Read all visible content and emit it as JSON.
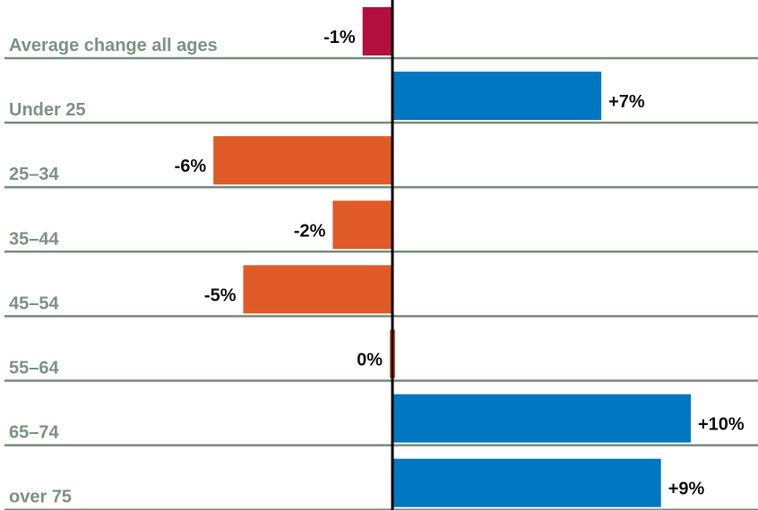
{
  "chart_data": {
    "type": "bar",
    "orientation": "horizontal",
    "categories": [
      "Average change all ages",
      "Under 25",
      "25–34",
      "35–44",
      "45–54",
      "55–64",
      "65–74",
      "over 75"
    ],
    "values": [
      -1,
      7,
      -6,
      -2,
      -5,
      0,
      10,
      9
    ],
    "value_labels": [
      "-1%",
      "+7%",
      "-6%",
      "-2%",
      "-5%",
      "0%",
      "+10%",
      "+9%"
    ],
    "colors": [
      "#b30f3e",
      "#0077c0",
      "#e05a28",
      "#e05a28",
      "#e05a28",
      "#e05a28",
      "#0077c0",
      "#0077c0"
    ]
  }
}
